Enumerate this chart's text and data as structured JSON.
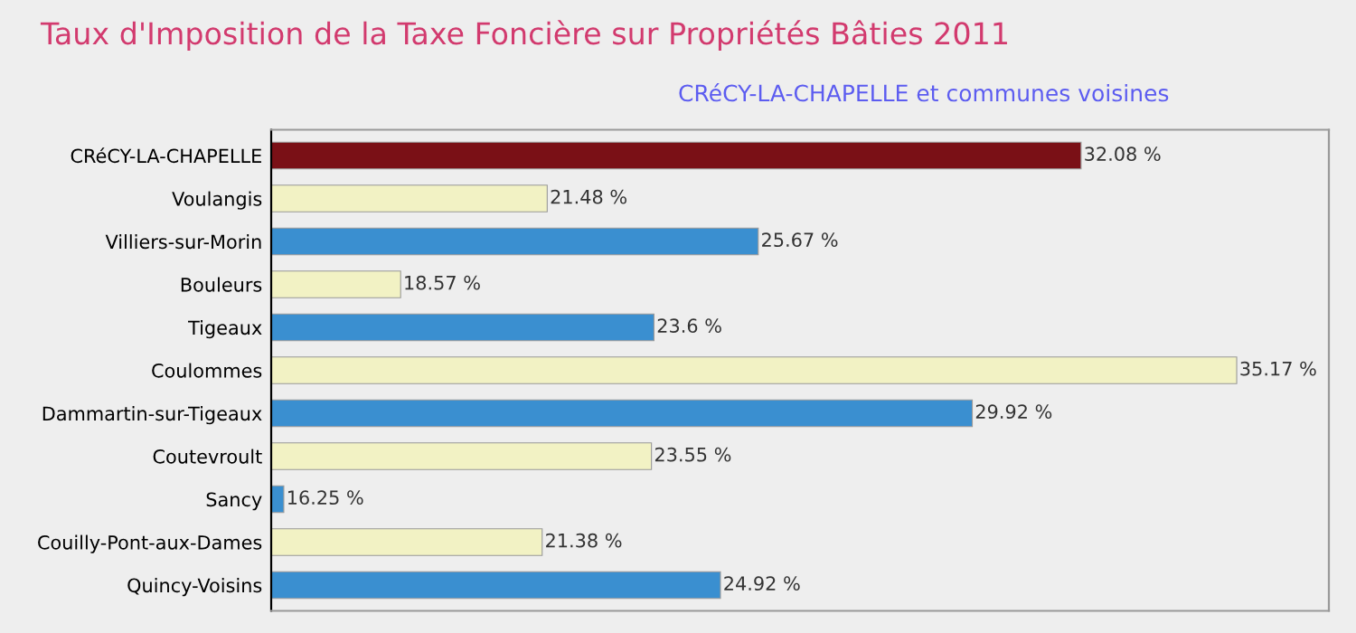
{
  "chart_data": {
    "type": "bar",
    "orientation": "horizontal",
    "title": "Taux d'Imposition de la Taxe Foncière sur Propriétés Bâties 2011",
    "subtitle": "CRéCY-LA-CHAPELLE et communes voisines",
    "categories": [
      "CRéCY-LA-CHAPELLE",
      "Voulangis",
      "Villiers-sur-Morin",
      "Bouleurs",
      "Tigeaux",
      "Coulommes",
      "Dammartin-sur-Tigeaux",
      "Coutevroult",
      "Sancy",
      "Couilly-Pont-aux-Dames",
      "Quincy-Voisins"
    ],
    "values": [
      32.08,
      21.48,
      25.67,
      18.57,
      23.6,
      35.17,
      29.92,
      23.55,
      16.25,
      21.38,
      24.92
    ],
    "value_labels": [
      "32.08 %",
      "21.48 %",
      "25.67 %",
      "18.57 %",
      "23.6 %",
      "35.17 %",
      "29.92 %",
      "23.55 %",
      "16.25 %",
      "21.38 %",
      "24.92 %"
    ],
    "colors": [
      "#7a1016",
      "#f2f2c4",
      "#3a8fd0",
      "#f2f2c4",
      "#3a8fd0",
      "#f2f2c4",
      "#3a8fd0",
      "#f2f2c4",
      "#3a8fd0",
      "#f2f2c4",
      "#3a8fd0"
    ],
    "xlim": [
      16,
      37
    ],
    "grid": false,
    "legend": false
  }
}
